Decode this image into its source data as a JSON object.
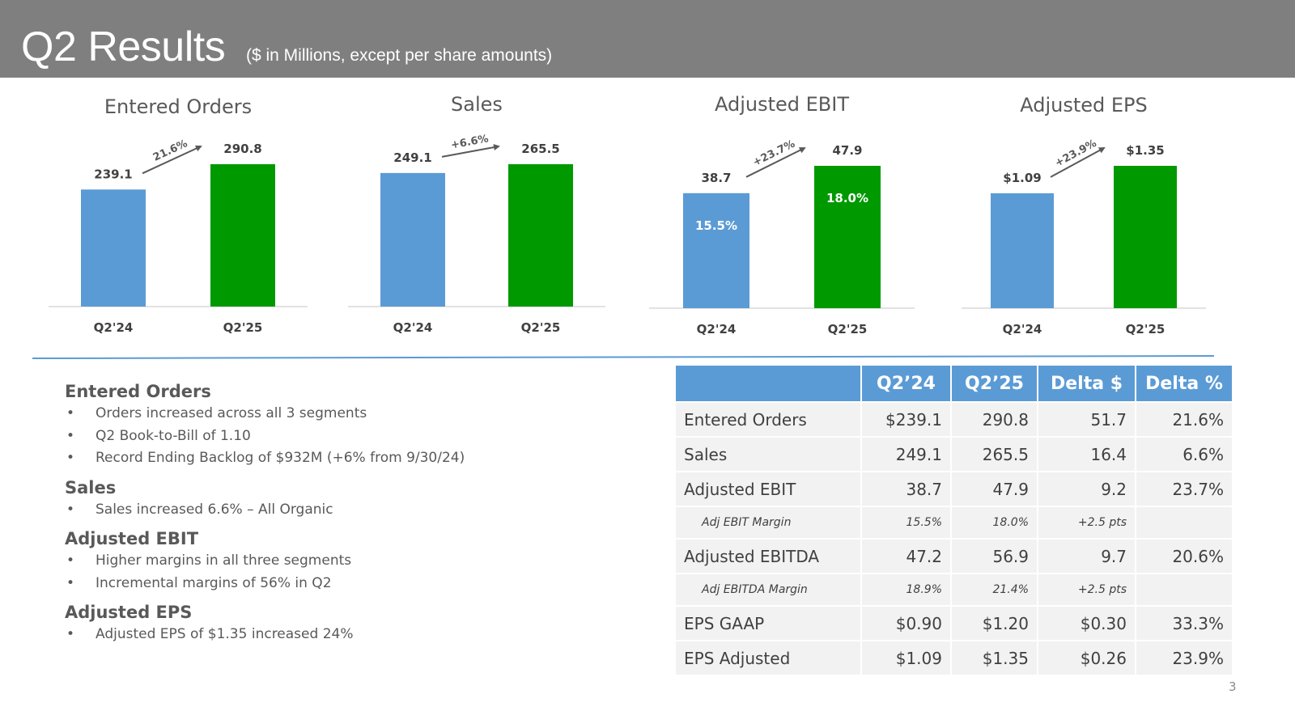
{
  "header": {
    "title": "Q2 Results",
    "subtitle": "($ in Millions, except per share amounts)"
  },
  "colors": {
    "prior": "#5b9bd5",
    "current": "#009900",
    "header_bg": "#7f7f7f",
    "table_header": "#5b9bd5"
  },
  "chart_data": [
    {
      "type": "bar",
      "title": "Entered Orders",
      "categories": [
        "Q2'24",
        "Q2'25"
      ],
      "values": [
        239.1,
        290.8
      ],
      "value_labels": [
        "239.1",
        "290.8"
      ],
      "inner_labels": [
        null,
        null
      ],
      "growth_label": "21.6%",
      "xlabel": "",
      "ylabel": ""
    },
    {
      "type": "bar",
      "title": "Sales",
      "categories": [
        "Q2'24",
        "Q2'25"
      ],
      "values": [
        249.1,
        265.5
      ],
      "value_labels": [
        "249.1",
        "265.5"
      ],
      "inner_labels": [
        null,
        null
      ],
      "growth_label": "+6.6%",
      "xlabel": "",
      "ylabel": ""
    },
    {
      "type": "bar",
      "title": "Adjusted EBIT",
      "categories": [
        "Q2'24",
        "Q2'25"
      ],
      "values": [
        38.7,
        47.9
      ],
      "value_labels": [
        "38.7",
        "47.9"
      ],
      "inner_labels": [
        "15.5%",
        "18.0%"
      ],
      "growth_label": "+23.7%",
      "xlabel": "",
      "ylabel": ""
    },
    {
      "type": "bar",
      "title": "Adjusted EPS",
      "categories": [
        "Q2'24",
        "Q2'25"
      ],
      "values": [
        1.09,
        1.35
      ],
      "value_labels": [
        "$1.09",
        "$1.35"
      ],
      "inner_labels": [
        null,
        null
      ],
      "growth_label": "+23.9%",
      "xlabel": "",
      "ylabel": ""
    }
  ],
  "notes": [
    {
      "title": "Entered Orders",
      "bullets": [
        "Orders increased across all 3 segments",
        "Q2 Book-to-Bill of 1.10",
        "Record Ending Backlog of $932M (+6% from 9/30/24)"
      ]
    },
    {
      "title": "Sales",
      "bullets": [
        "Sales increased 6.6% – All Organic"
      ]
    },
    {
      "title": "Adjusted EBIT",
      "bullets": [
        "Higher margins in all three segments",
        "Incremental margins of 56% in Q2"
      ]
    },
    {
      "title": "Adjusted EPS",
      "bullets": [
        "Adjusted EPS of $1.35 increased 24%"
      ]
    }
  ],
  "bullet_char": "•",
  "table": {
    "headers": [
      "",
      "Q2’24",
      "Q2’25",
      "Delta $",
      "Delta %"
    ],
    "rows": [
      {
        "sub": false,
        "cells": [
          "Entered Orders",
          "$239.1",
          "290.8",
          "51.7",
          "21.6%"
        ]
      },
      {
        "sub": false,
        "cells": [
          "Sales",
          "249.1",
          "265.5",
          "16.4",
          "6.6%"
        ]
      },
      {
        "sub": false,
        "cells": [
          "Adjusted EBIT",
          "38.7",
          "47.9",
          "9.2",
          "23.7%"
        ]
      },
      {
        "sub": true,
        "cells": [
          "Adj EBIT Margin",
          "15.5%",
          "18.0%",
          "+2.5 pts",
          ""
        ]
      },
      {
        "sub": false,
        "cells": [
          "Adjusted EBITDA",
          "47.2",
          "56.9",
          "9.7",
          "20.6%"
        ]
      },
      {
        "sub": true,
        "cells": [
          "Adj EBITDA Margin",
          "18.9%",
          "21.4%",
          "+2.5 pts",
          ""
        ]
      },
      {
        "sub": false,
        "cells": [
          "EPS GAAP",
          "$0.90",
          "$1.20",
          "$0.30",
          "33.3%"
        ]
      },
      {
        "sub": false,
        "cells": [
          "EPS Adjusted",
          "$1.09",
          "$1.35",
          "$0.26",
          "23.9%"
        ]
      }
    ]
  },
  "page_number": "3"
}
